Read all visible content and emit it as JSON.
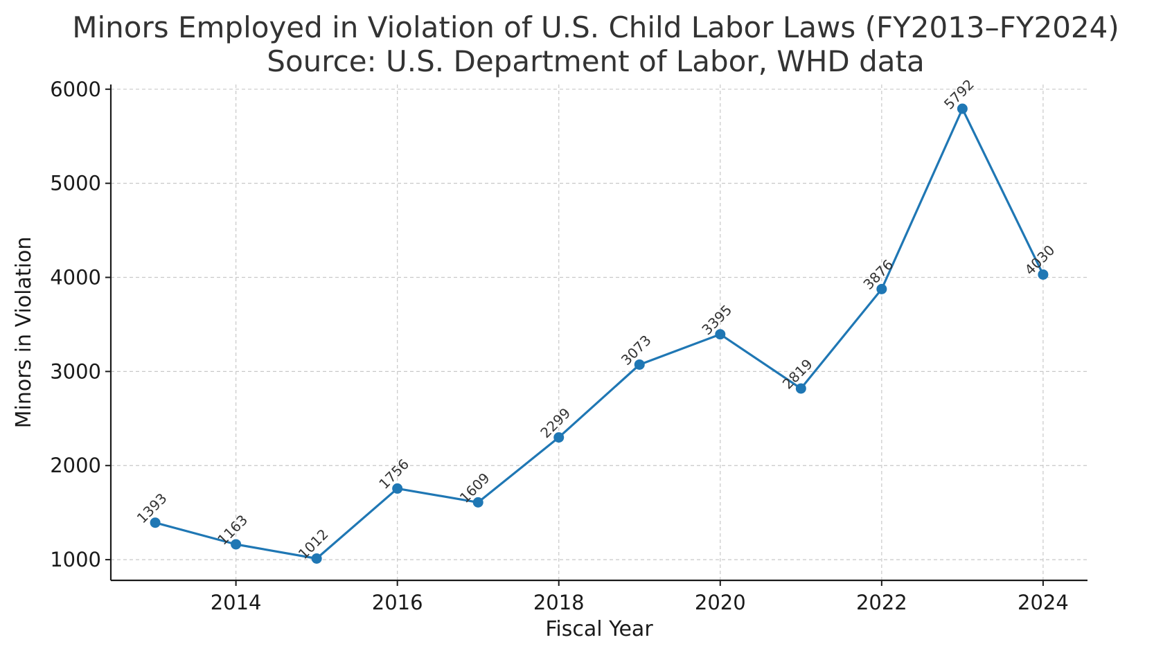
{
  "chart_data": {
    "type": "line",
    "title": "Minors Employed in Violation of U.S. Child Labor Laws (FY2013–FY2024)",
    "subtitle": "Source: U.S. Department of Labor, WHD data",
    "xlabel": "Fiscal Year",
    "ylabel": "Minors in Violation",
    "x": [
      2013,
      2014,
      2015,
      2016,
      2017,
      2018,
      2019,
      2020,
      2021,
      2022,
      2023,
      2024
    ],
    "series": [
      {
        "values": [
          1393,
          1163,
          1012,
          1756,
          1609,
          2299,
          3073,
          3395,
          2819,
          3876,
          5792,
          4030
        ],
        "color": "#1f77b4"
      }
    ],
    "xlim": [
      2012.45,
      2024.55
    ],
    "ylim": [
      780,
      6050
    ],
    "xticks": [
      2014,
      2016,
      2018,
      2020,
      2022,
      2024
    ],
    "yticks": [
      1000,
      2000,
      3000,
      4000,
      5000,
      6000
    ],
    "grid": true,
    "data_labels": true
  }
}
